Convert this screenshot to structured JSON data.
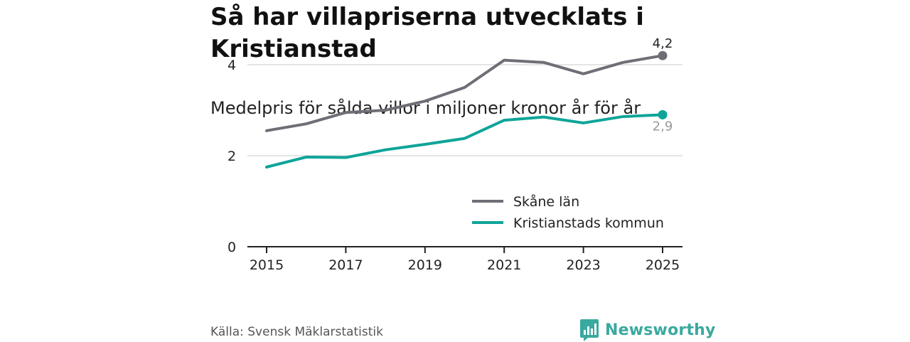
{
  "title": "Så har villapriserna utvecklats i Kristianstad",
  "subtitle": "Medelpris för sålda villor i miljoner kronor år för år",
  "source": "Källa: Svensk Mäklarstatistik",
  "brand": "Newsworthy",
  "colors": {
    "skane": "#6e6e76",
    "kristianstad": "#0ea499",
    "grid": "#dcdcdc",
    "axis": "#222222",
    "brand": "#3aa99f"
  },
  "chart_data": {
    "type": "line",
    "title": "Medelpris för sålda villor i miljoner kronor år för år",
    "xlabel": "",
    "ylabel": "",
    "x": [
      2015,
      2016,
      2017,
      2018,
      2019,
      2020,
      2021,
      2022,
      2023,
      2024,
      2025
    ],
    "xticks": [
      "2015",
      "2017",
      "2019",
      "2021",
      "2023",
      "2025"
    ],
    "yticks": [
      "0",
      "2",
      "4"
    ],
    "ylim": [
      0,
      4.6
    ],
    "grid": true,
    "legend": "middle-right",
    "series": [
      {
        "name": "Skåne län",
        "values": [
          2.55,
          2.7,
          2.95,
          3.0,
          3.2,
          3.5,
          4.1,
          4.05,
          3.8,
          4.05,
          4.2
        ],
        "end_label": "4,2"
      },
      {
        "name": "Kristianstads kommun",
        "values": [
          1.75,
          1.97,
          1.96,
          2.13,
          2.25,
          2.38,
          2.78,
          2.85,
          2.72,
          2.86,
          2.9
        ],
        "end_label": "2,9"
      }
    ]
  }
}
